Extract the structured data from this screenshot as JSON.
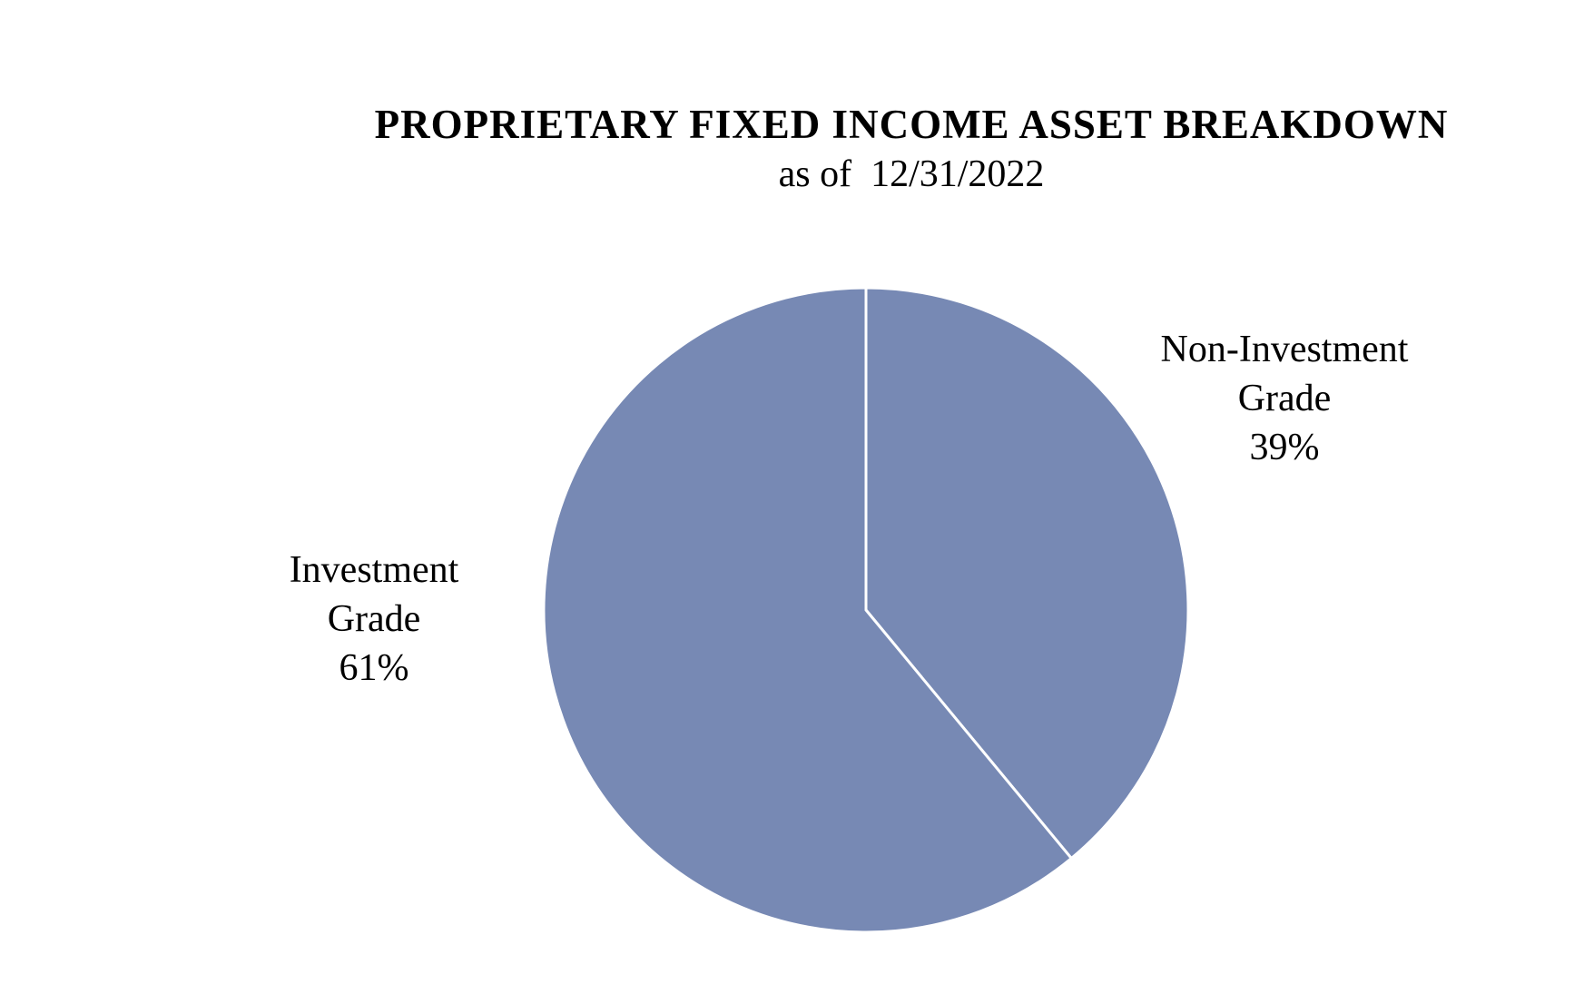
{
  "chart_data": {
    "type": "pie",
    "title": "PROPRIETARY FIXED INCOME ASSET BREAKDOWN",
    "subtitle": "as of  12/31/2022",
    "categories": [
      "Non-Investment Grade",
      "Investment Grade"
    ],
    "values": [
      39,
      61
    ],
    "value_labels": [
      "39%",
      "61%"
    ],
    "color": "#7789b4"
  }
}
